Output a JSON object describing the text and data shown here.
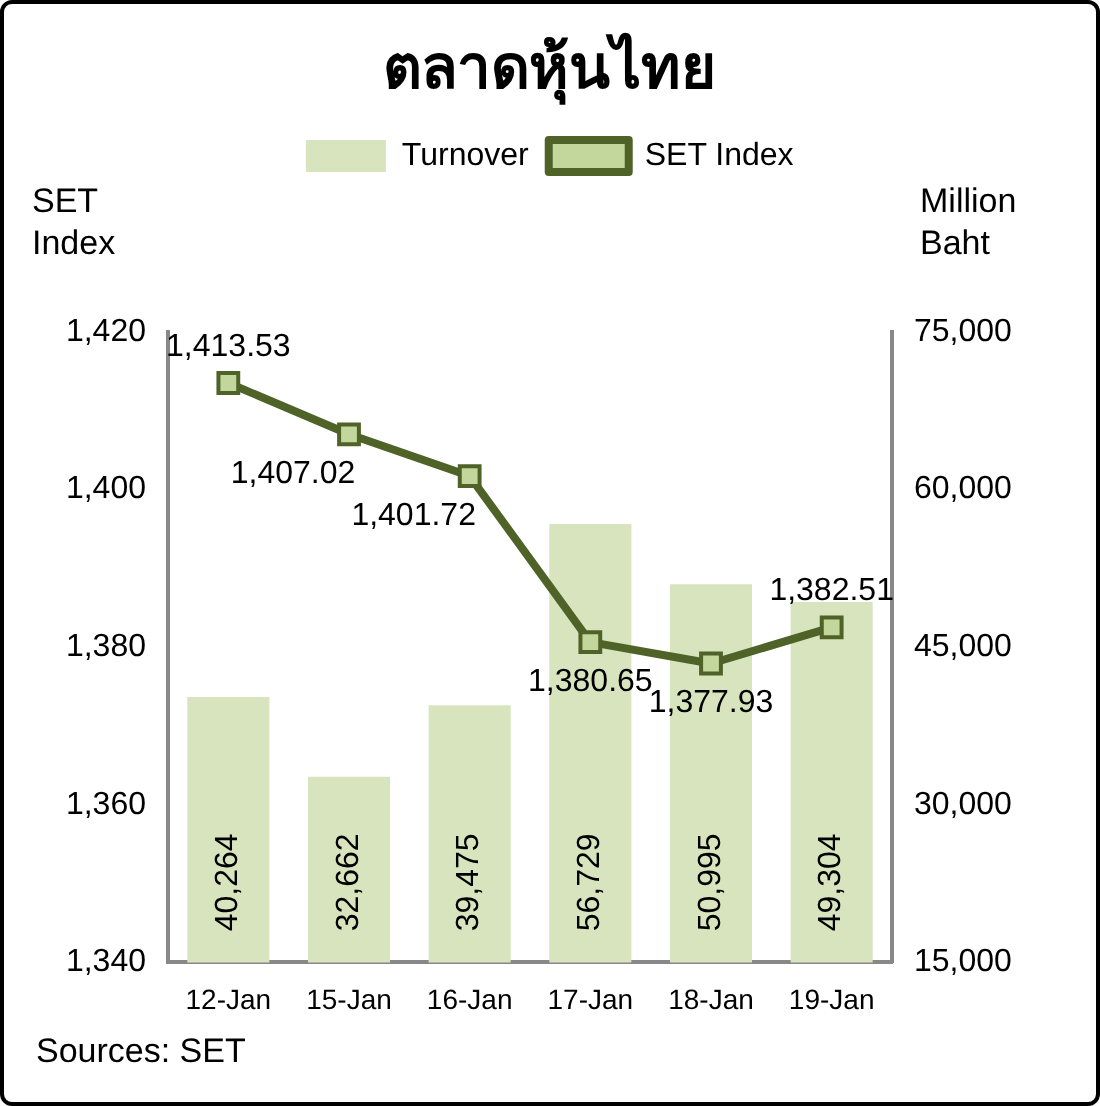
{
  "chart_data": {
    "type": "bar",
    "title": "ตลาดหุ้นไทย",
    "ylabel": "SET Index",
    "y2label": "Million Baht",
    "categories": [
      "12-Jan",
      "15-Jan",
      "16-Jan",
      "17-Jan",
      "18-Jan",
      "19-Jan"
    ],
    "series": [
      {
        "name": "Turnover",
        "axis": "y2",
        "color": "#d7e4bd",
        "values": [
          40264,
          32662,
          39475,
          56729,
          50995,
          49304
        ],
        "value_labels": [
          "40,264",
          "32,662",
          "39,475",
          "56,729",
          "50,995",
          "49,304"
        ]
      },
      {
        "name": "SET Index",
        "type": "line",
        "axis": "y",
        "color": "#4f6228",
        "values": [
          1413.53,
          1407.02,
          1401.72,
          1380.65,
          1377.93,
          1382.51
        ],
        "value_labels": [
          "1,413.53",
          "1,407.02",
          "1,401.72",
          "1,380.65",
          "1,377.93",
          "1,382.51"
        ]
      }
    ],
    "ylim": [
      1340,
      1420
    ],
    "yticks": [
      {
        "value": 1340,
        "label": "1,340"
      },
      {
        "value": 1360,
        "label": "1,360"
      },
      {
        "value": 1380,
        "label": "1,380"
      },
      {
        "value": 1400,
        "label": "1,400"
      },
      {
        "value": 1420,
        "label": "1,420"
      }
    ],
    "y2lim": [
      15000,
      75000
    ],
    "y2ticks": [
      {
        "value": 15000,
        "label": "15,000"
      },
      {
        "value": 30000,
        "label": "30,000"
      },
      {
        "value": 45000,
        "label": "45,000"
      },
      {
        "value": 60000,
        "label": "60,000"
      },
      {
        "value": 75000,
        "label": "75,000"
      }
    ],
    "marker": "square",
    "legend": "top",
    "grid": false,
    "annotations": [
      "Sources: SET"
    ]
  }
}
